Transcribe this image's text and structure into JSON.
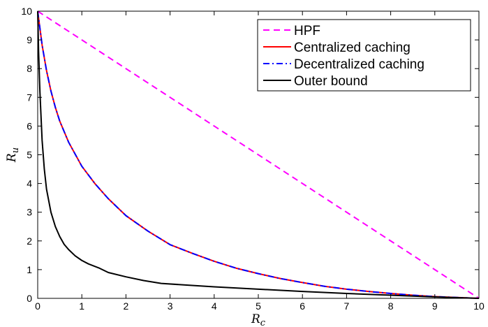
{
  "chart_data": {
    "type": "line",
    "title": "",
    "xlabel": "R_c",
    "ylabel": "R_u",
    "xlim": [
      0,
      10
    ],
    "ylim": [
      0,
      10
    ],
    "xticks": [
      0,
      1,
      2,
      3,
      4,
      5,
      6,
      7,
      8,
      9,
      10
    ],
    "yticks": [
      0,
      1,
      2,
      3,
      4,
      5,
      6,
      7,
      8,
      9,
      10
    ],
    "grid": false,
    "legend_position": "top-right",
    "series": [
      {
        "name": "HPF",
        "color": "#ff00ff",
        "dash": "dashed",
        "x": [
          0,
          10
        ],
        "y": [
          10,
          0
        ]
      },
      {
        "name": "Centralized caching",
        "color": "#ff0000",
        "dash": "solid",
        "x": [
          0,
          0.1,
          0.2,
          0.3,
          0.4,
          0.5,
          0.7,
          1,
          1.3,
          1.6,
          2,
          2.5,
          3,
          3.5,
          4,
          4.5,
          5,
          5.5,
          6,
          6.5,
          7,
          7.5,
          8,
          8.5,
          9,
          9.5,
          10
        ],
        "y": [
          10,
          8.82,
          7.93,
          7.22,
          6.65,
          6.17,
          5.44,
          4.6,
          3.99,
          3.47,
          2.88,
          2.34,
          1.87,
          1.57,
          1.29,
          1.05,
          0.86,
          0.69,
          0.55,
          0.42,
          0.32,
          0.24,
          0.17,
          0.11,
          0.06,
          0.03,
          0.0
        ]
      },
      {
        "name": "Decentralized caching",
        "color": "#0000ff",
        "dash": "dashdot",
        "x": [
          0,
          0.1,
          0.2,
          0.3,
          0.4,
          0.5,
          0.7,
          1,
          1.3,
          1.6,
          2,
          2.5,
          3,
          3.5,
          4,
          4.5,
          5,
          5.5,
          6,
          6.5,
          7,
          7.5,
          8,
          8.5,
          9,
          9.5,
          10
        ],
        "y": [
          10,
          8.82,
          7.93,
          7.22,
          6.65,
          6.17,
          5.44,
          4.6,
          3.99,
          3.47,
          2.88,
          2.34,
          1.87,
          1.57,
          1.29,
          1.05,
          0.86,
          0.69,
          0.55,
          0.42,
          0.32,
          0.24,
          0.17,
          0.11,
          0.06,
          0.03,
          0.0
        ]
      },
      {
        "name": "Outer bound",
        "color": "#000000",
        "dash": "solid",
        "x": [
          0,
          0.02,
          0.05,
          0.1,
          0.15,
          0.2,
          0.3,
          0.4,
          0.5,
          0.6,
          0.7,
          0.85,
          1,
          1.15,
          1.4,
          1.6,
          2,
          2.4,
          2.8,
          3.5,
          4,
          5,
          6,
          7,
          8,
          9,
          10
        ],
        "y": [
          10,
          8.6,
          7.2,
          5.5,
          4.5,
          3.8,
          3.0,
          2.5,
          2.15,
          1.88,
          1.7,
          1.48,
          1.32,
          1.2,
          1.05,
          0.9,
          0.75,
          0.62,
          0.52,
          0.45,
          0.4,
          0.32,
          0.24,
          0.17,
          0.11,
          0.05,
          0.0
        ]
      }
    ]
  }
}
